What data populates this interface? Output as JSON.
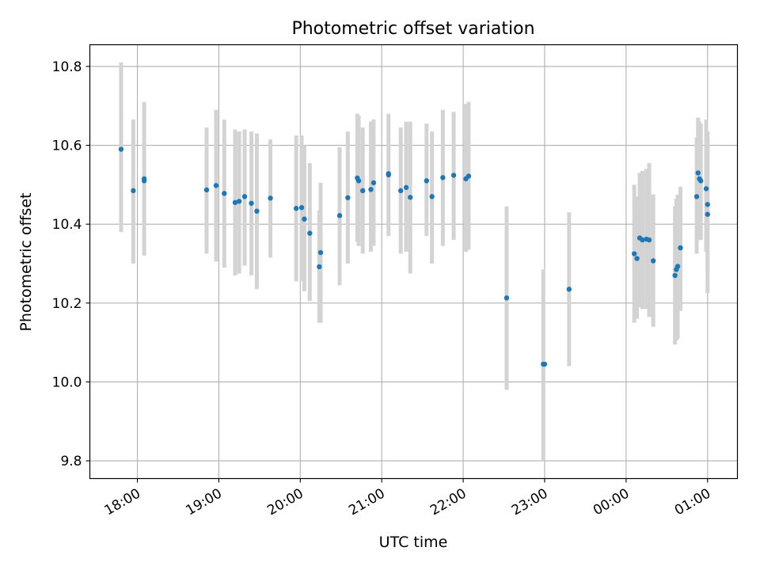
{
  "chart_data": {
    "type": "scatter",
    "title": "Photometric offset variation",
    "xlabel": "UTC time",
    "ylabel": "Photometric offset",
    "xlim": [
      "17:25",
      "01:22"
    ],
    "ylim": [
      9.755,
      10.855
    ],
    "x_ticks": [
      "18:00",
      "19:00",
      "20:00",
      "21:00",
      "22:00",
      "23:00",
      "00:00",
      "01:00"
    ],
    "y_ticks": [
      "9.8",
      "10.0",
      "10.2",
      "10.4",
      "10.6",
      "10.8"
    ],
    "grid": true,
    "series": [
      {
        "marker_color": "#1f77b4",
        "errorbar_color": "#d3d3d3",
        "points": [
          {
            "x": "17:48",
            "y": 10.59,
            "lo": 10.38,
            "hi": 10.81
          },
          {
            "x": "17:57",
            "y": 10.485,
            "lo": 10.3,
            "hi": 10.665
          },
          {
            "x": "18:05",
            "y": 10.51,
            "lo": 10.32,
            "hi": 10.71
          },
          {
            "x": "18:05",
            "y": 10.515
          },
          {
            "x": "18:51",
            "y": 10.487,
            "lo": 10.325,
            "hi": 10.645
          },
          {
            "x": "18:58",
            "y": 10.498,
            "lo": 10.305,
            "hi": 10.69
          },
          {
            "x": "19:04",
            "y": 10.478,
            "lo": 10.29,
            "hi": 10.665
          },
          {
            "x": "19:12",
            "y": 10.455,
            "lo": 10.27,
            "hi": 10.64
          },
          {
            "x": "19:15",
            "y": 10.458,
            "lo": 10.275,
            "hi": 10.635
          },
          {
            "x": "19:19",
            "y": 10.47,
            "lo": 10.295,
            "hi": 10.64
          },
          {
            "x": "19:24",
            "y": 10.453,
            "lo": 10.27,
            "hi": 10.635
          },
          {
            "x": "19:28",
            "y": 10.433,
            "lo": 10.235,
            "hi": 10.63
          },
          {
            "x": "19:38",
            "y": 10.466,
            "lo": 10.315,
            "hi": 10.615
          },
          {
            "x": "19:57",
            "y": 10.44,
            "lo": 10.255,
            "hi": 10.625
          },
          {
            "x": "20:01",
            "y": 10.442,
            "lo": 10.255,
            "hi": 10.625
          },
          {
            "x": "20:03",
            "y": 10.413,
            "lo": 10.23,
            "hi": 10.6
          },
          {
            "x": "20:07",
            "y": 10.377,
            "lo": 10.205,
            "hi": 10.555
          },
          {
            "x": "20:14",
            "y": 10.292,
            "lo": 10.15,
            "hi": 10.435
          },
          {
            "x": "20:15",
            "y": 10.328,
            "lo": 10.15,
            "hi": 10.505
          },
          {
            "x": "20:29",
            "y": 10.422,
            "lo": 10.245,
            "hi": 10.595
          },
          {
            "x": "20:35",
            "y": 10.467,
            "lo": 10.3,
            "hi": 10.635
          },
          {
            "x": "20:42",
            "y": 10.517,
            "lo": 10.355,
            "hi": 10.68
          },
          {
            "x": "20:43",
            "y": 10.51,
            "lo": 10.345,
            "hi": 10.675
          },
          {
            "x": "20:46",
            "y": 10.485,
            "lo": 10.325,
            "hi": 10.645
          },
          {
            "x": "20:52",
            "y": 10.488,
            "lo": 10.33,
            "hi": 10.66
          },
          {
            "x": "20:54",
            "y": 10.505,
            "lo": 10.345,
            "hi": 10.665
          },
          {
            "x": "21:05",
            "y": 10.525,
            "lo": 10.37,
            "hi": 10.68
          },
          {
            "x": "21:05",
            "y": 10.528
          },
          {
            "x": "21:14",
            "y": 10.485,
            "lo": 10.325,
            "hi": 10.645
          },
          {
            "x": "21:18",
            "y": 10.493,
            "lo": 10.33,
            "hi": 10.66
          },
          {
            "x": "21:21",
            "y": 10.468,
            "lo": 10.275,
            "hi": 10.66
          },
          {
            "x": "21:33",
            "y": 10.51,
            "lo": 10.37,
            "hi": 10.655
          },
          {
            "x": "21:37",
            "y": 10.47,
            "lo": 10.3,
            "hi": 10.635
          },
          {
            "x": "21:45",
            "y": 10.518,
            "lo": 10.345,
            "hi": 10.69
          },
          {
            "x": "21:53",
            "y": 10.524,
            "lo": 10.36,
            "hi": 10.685
          },
          {
            "x": "22:02",
            "y": 10.515,
            "lo": 10.33,
            "hi": 10.705
          },
          {
            "x": "22:04",
            "y": 10.522,
            "lo": 10.335,
            "hi": 10.71
          },
          {
            "x": "22:32",
            "y": 10.213,
            "lo": 9.98,
            "hi": 10.445
          },
          {
            "x": "22:59",
            "y": 10.045,
            "lo": 9.8,
            "hi": 10.285
          },
          {
            "x": "23:00",
            "y": 10.045
          },
          {
            "x": "23:18",
            "y": 10.235,
            "lo": 10.04,
            "hi": 10.43
          },
          {
            "x": "00:06",
            "y": 10.325,
            "lo": 10.15,
            "hi": 10.5
          },
          {
            "x": "00:08",
            "y": 10.313,
            "lo": 10.16,
            "hi": 10.47
          },
          {
            "x": "00:10",
            "y": 10.365,
            "lo": 10.19,
            "hi": 10.53
          },
          {
            "x": "00:12",
            "y": 10.36,
            "lo": 10.185,
            "hi": 10.535
          },
          {
            "x": "00:15",
            "y": 10.362,
            "lo": 10.185,
            "hi": 10.54
          },
          {
            "x": "00:17",
            "y": 10.36,
            "lo": 10.165,
            "hi": 10.555
          },
          {
            "x": "00:20",
            "y": 10.307,
            "lo": 10.14,
            "hi": 10.475
          },
          {
            "x": "00:36",
            "y": 10.27,
            "lo": 10.095,
            "hi": 10.445
          },
          {
            "x": "00:37",
            "y": 10.285,
            "lo": 10.105,
            "hi": 10.465
          },
          {
            "x": "00:38",
            "y": 10.293,
            "lo": 10.11,
            "hi": 10.475
          },
          {
            "x": "00:40",
            "y": 10.34,
            "lo": 10.18,
            "hi": 10.495
          },
          {
            "x": "00:52",
            "y": 10.47,
            "lo": 10.325,
            "hi": 10.62
          },
          {
            "x": "00:53",
            "y": 10.53,
            "lo": 10.36,
            "hi": 10.67
          },
          {
            "x": "00:54",
            "y": 10.515,
            "lo": 10.37,
            "hi": 10.66
          },
          {
            "x": "00:55",
            "y": 10.51,
            "lo": 10.36,
            "hi": 10.655
          },
          {
            "x": "00:59",
            "y": 10.49,
            "lo": 10.33,
            "hi": 10.665
          },
          {
            "x": "01:00",
            "y": 10.45,
            "lo": 10.275,
            "hi": 10.635
          },
          {
            "x": "01:00",
            "y": 10.425,
            "lo": 10.225,
            "hi": 10.625
          }
        ]
      }
    ]
  }
}
